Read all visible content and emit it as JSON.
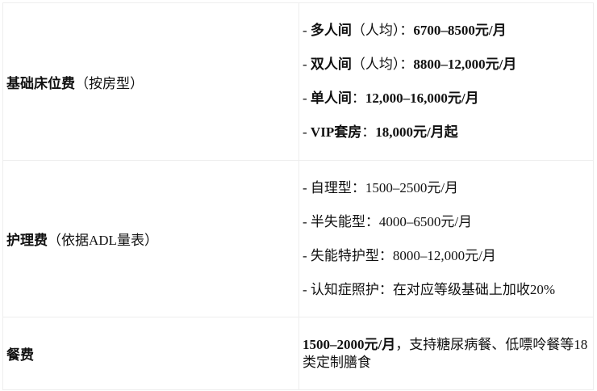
{
  "rows": [
    {
      "label_bold": "基础床位费",
      "label_note": "（按房型）",
      "items": [
        {
          "prefix": "- ",
          "name": "多人间",
          "note": "（人均）：",
          "value": "6700–8500元/月"
        },
        {
          "prefix": "- ",
          "name": "双人间",
          "note": "（人均）：",
          "value": "8800–12,000元/月"
        },
        {
          "prefix": "- ",
          "name": "单人间",
          "note": "：",
          "value": "12,000–16,000元/月"
        },
        {
          "prefix": "- ",
          "name": "VIP套房",
          "note": "：",
          "value": "18,000元/月起"
        }
      ]
    },
    {
      "label_bold": "护理费",
      "label_note": "（依据ADL量表）",
      "items": [
        "- 自理型：1500–2500元/月",
        "- 半失能型：4000–6500元/月",
        "- 失能特护型：8000–12,000元/月",
        "- 认知症照护：在对应等级基础上加收20%"
      ]
    },
    {
      "label_bold": "餐费",
      "value_bold": "1500–2000元/月",
      "value_rest": "，支持糖尿病餐、低嘌呤餐等18类定制膳食"
    }
  ]
}
